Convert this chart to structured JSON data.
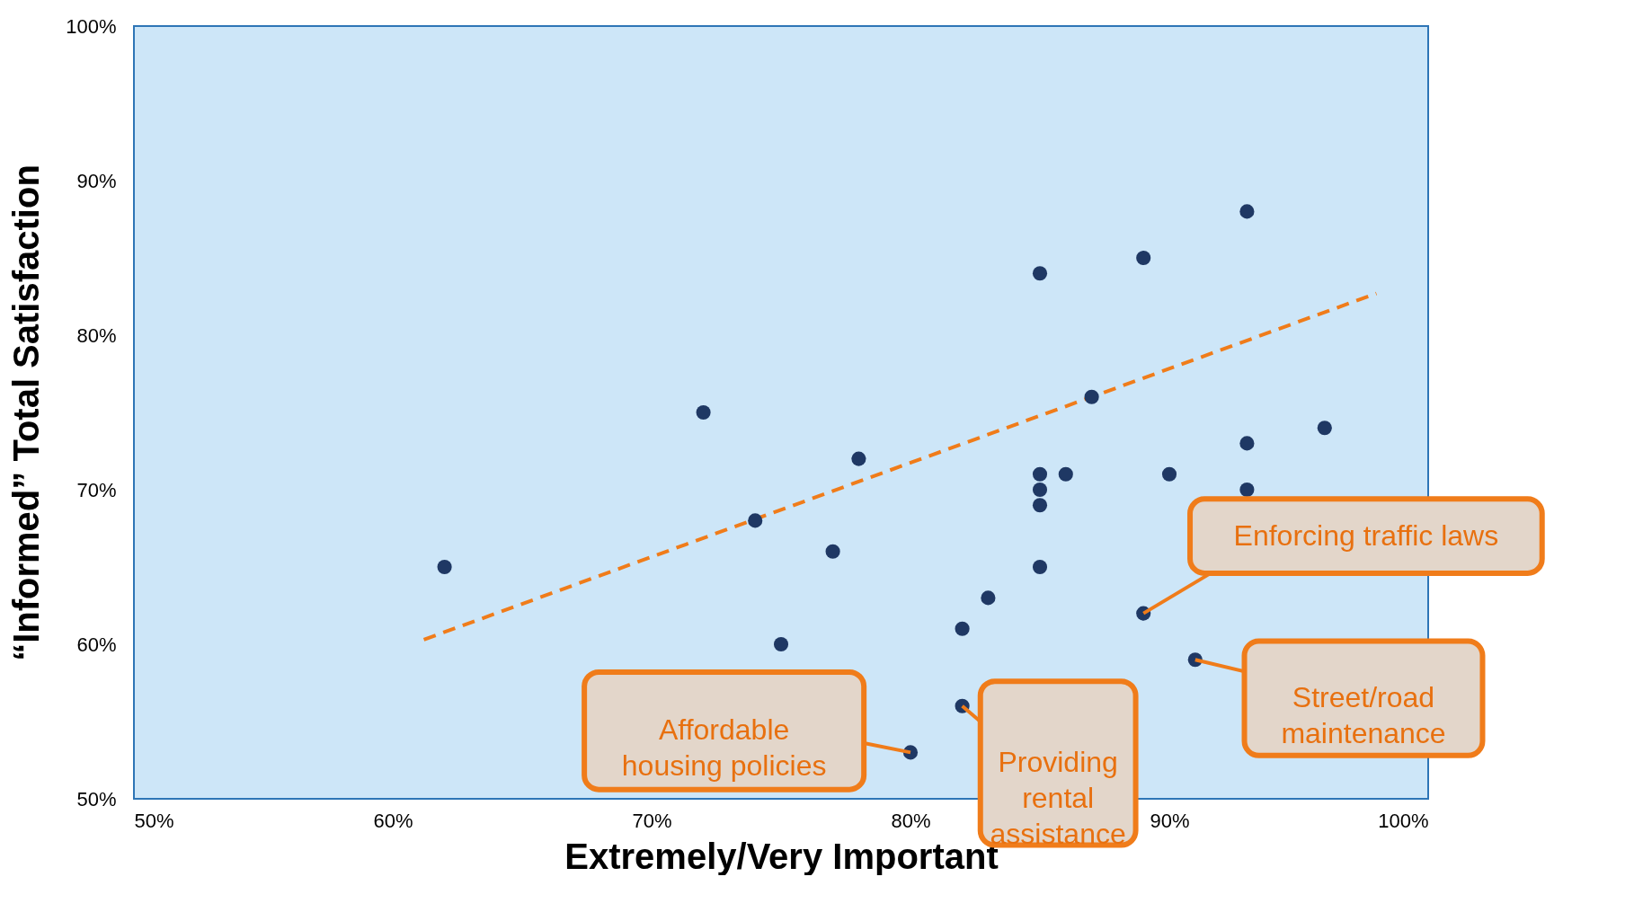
{
  "chart_data": {
    "type": "scatter",
    "xlabel": "Extremely/Very Important",
    "ylabel": "“Informed” Total Satisfaction",
    "xlim": [
      50,
      100
    ],
    "ylim": [
      50,
      100
    ],
    "xticks": [
      {
        "value": 50,
        "label": "50%"
      },
      {
        "value": 60,
        "label": "60%"
      },
      {
        "value": 70,
        "label": "70%"
      },
      {
        "value": 80,
        "label": "80%"
      },
      {
        "value": 90,
        "label": "90%"
      },
      {
        "value": 100,
        "label": "100%"
      }
    ],
    "yticks": [
      {
        "value": 50,
        "label": "50%"
      },
      {
        "value": 60,
        "label": "60%"
      },
      {
        "value": 70,
        "label": "70%"
      },
      {
        "value": 80,
        "label": "80%"
      },
      {
        "value": 90,
        "label": "90%"
      },
      {
        "value": 100,
        "label": "100%"
      }
    ],
    "grid": false,
    "series": [
      {
        "type": "scatter",
        "color": "#1f3864",
        "marker": "circle",
        "x": [
          62,
          72,
          74,
          75,
          77,
          78,
          80,
          82,
          82,
          83,
          85,
          85,
          85,
          85,
          85,
          86,
          87,
          89,
          89,
          90,
          91,
          93,
          93,
          93,
          96
        ],
        "values": [
          65,
          75,
          68,
          60,
          66,
          72,
          53,
          61,
          56,
          63,
          84,
          71,
          70,
          69,
          65,
          71,
          76,
          85,
          62,
          71,
          59,
          88,
          73,
          70,
          74
        ]
      },
      {
        "type": "line",
        "color": "#f07c1a",
        "marker": "none",
        "line_style": "dashed",
        "x": [
          61.2,
          98.0
        ],
        "values": [
          60.3,
          82.7
        ]
      }
    ],
    "annotations": [
      {
        "text": "Enforcing traffic laws",
        "x": 89,
        "y": 62
      },
      {
        "text": "Street/road maintenance",
        "x": 91,
        "y": 59
      },
      {
        "text": "Providing rental assistance",
        "x": 82,
        "y": 56
      },
      {
        "text": "Affordable housing policies",
        "x": 80,
        "y": 53
      }
    ]
  }
}
